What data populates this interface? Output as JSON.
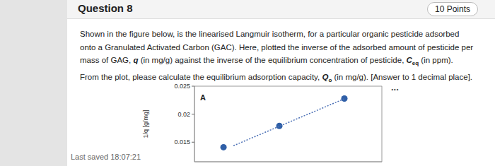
{
  "header": {
    "title": "Question 8",
    "points": "10 Points"
  },
  "question": [
    [
      {
        "text": "Shown in the figure below, is the linearised Langmuir isotherm, for a particular organic pesticide adsorbed"
      }
    ],
    [
      {
        "text": "onto a Granulated Activated Carbon (GAC). Here, plotted the inverse of the adsorbed amount of pesticide per"
      }
    ],
    [
      {
        "text": "mass of GAG, "
      },
      {
        "text": "q",
        "emph": true
      },
      {
        "text": " (in mg/g) against the inverse of the equilibrium concentration of pesticide, "
      },
      {
        "text": "C",
        "sub": "eq",
        "emph": true
      },
      {
        "text": " (in ppm)."
      }
    ],
    [
      {
        "text": "From the plot, please calculate the equilibrium adsorption capacity, "
      },
      {
        "text": "Q",
        "sub": "o",
        "emph": true
      },
      {
        "text": " (in mg/g). [Answer to 1 decimal place]."
      }
    ]
  ],
  "menu": "...",
  "footer": "Last saved 18:07:21",
  "chart_data": {
    "type": "scatter",
    "y_label": "1/q [g/mg]",
    "annotations": [
      "A"
    ],
    "xlim": [
      0,
      1
    ],
    "ylim": [
      0.0115,
      0.025
    ],
    "yticks": [
      0.015,
      0.02,
      0.025
    ],
    "tick_labels": "y",
    "series": [
      {
        "type": "scatter",
        "color": "#2f5fa7",
        "marker": "circle",
        "x": [
          0.155,
          0.453,
          0.8
        ],
        "values": [
          0.0141,
          0.0179,
          0.0228
        ]
      },
      {
        "type": "line",
        "color": "#4a6fb5",
        "line_style": "dotted",
        "x": [
          0.208,
          0.8
        ],
        "values": [
          0.01437,
          0.02275
        ]
      }
    ]
  }
}
